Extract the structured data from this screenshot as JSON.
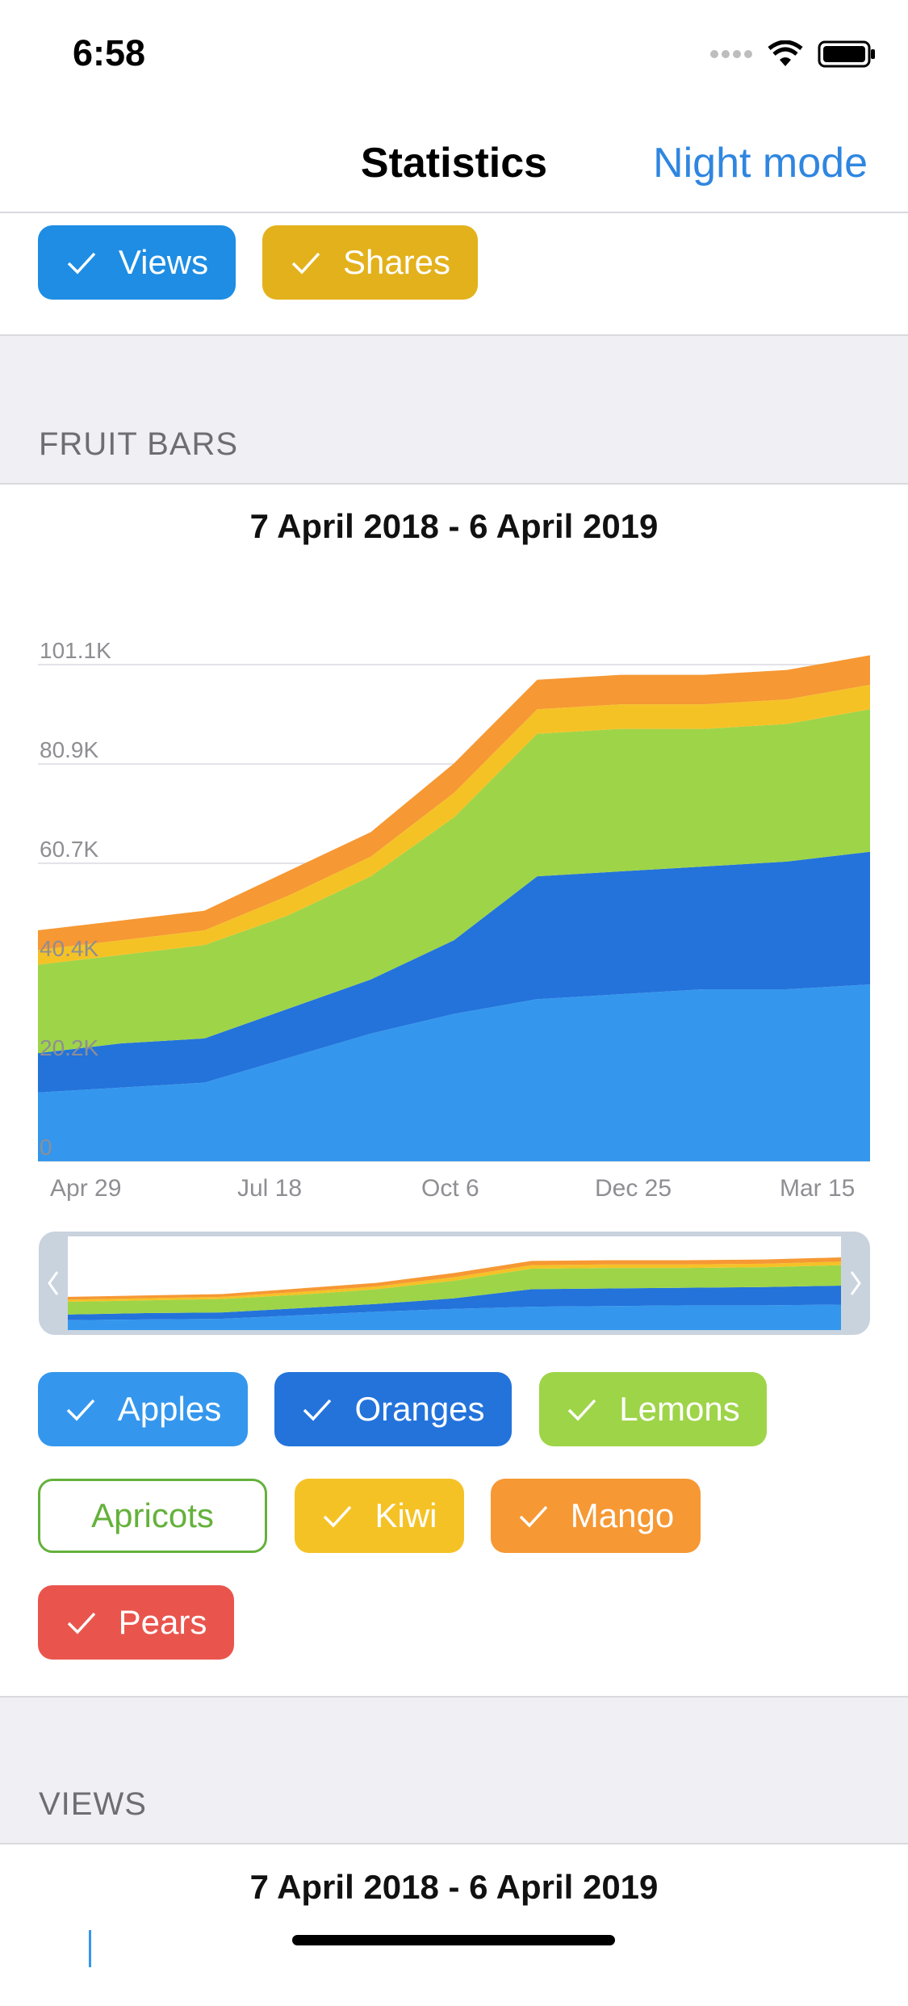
{
  "status": {
    "time": "6:58"
  },
  "nav": {
    "title": "Statistics",
    "right_button": "Night mode"
  },
  "top_toggles": [
    {
      "label": "Views",
      "color": "#1e8de3"
    },
    {
      "label": "Shares",
      "color": "#e3b11b"
    }
  ],
  "fruit_section": {
    "label": "FRUIT BARS",
    "date_range": "7 April 2018 - 6 April 2019",
    "y_ticks": [
      "0",
      "20.2K",
      "40.4K",
      "60.7K",
      "80.9K",
      "101.1K"
    ],
    "x_ticks": [
      "Apr 29",
      "Jul 18",
      "Oct 6",
      "Dec 25",
      "Mar 15"
    ],
    "toggles": [
      {
        "label": "Apples",
        "color": "#3497ed",
        "checked": true
      },
      {
        "label": "Oranges",
        "color": "#2373db",
        "checked": true
      },
      {
        "label": "Lemons",
        "color": "#9ed448",
        "checked": true
      },
      {
        "label": "Apricots",
        "color": "#64b13b",
        "checked": false
      },
      {
        "label": "Kiwi",
        "color": "#f5c226",
        "checked": true
      },
      {
        "label": "Mango",
        "color": "#f69833",
        "checked": true
      },
      {
        "label": "Pears",
        "color": "#e9554d",
        "checked": true
      }
    ]
  },
  "views_section": {
    "label": "VIEWS",
    "date_range": "7 April 2018 - 6 April 2019"
  },
  "chart_data": {
    "type": "area",
    "stacked": true,
    "x": [
      "Apr 7",
      "Apr 29",
      "Jun 1",
      "Jul 18",
      "Aug 20",
      "Oct 6",
      "Oct 25",
      "Dec 25",
      "Feb 10",
      "Mar 15",
      "Apr 6"
    ],
    "series": [
      {
        "name": "Apples",
        "color": "#3497ed",
        "values": [
          14000,
          15000,
          16000,
          21000,
          26000,
          30000,
          33000,
          34000,
          35000,
          35000,
          36000
        ]
      },
      {
        "name": "Oranges",
        "color": "#2373db",
        "values": [
          8000,
          9000,
          9000,
          10000,
          11000,
          15000,
          25000,
          25000,
          25000,
          26000,
          27000
        ]
      },
      {
        "name": "Lemons",
        "color": "#9ed448",
        "values": [
          18000,
          18000,
          19000,
          19000,
          21000,
          25000,
          29000,
          29000,
          28000,
          28000,
          29000
        ]
      },
      {
        "name": "Kiwi",
        "color": "#f5c226",
        "values": [
          3000,
          3000,
          3000,
          4000,
          4000,
          5000,
          5000,
          5000,
          5000,
          5000,
          5000
        ]
      },
      {
        "name": "Mango",
        "color": "#f69833",
        "values": [
          4000,
          4000,
          4000,
          5000,
          5000,
          6000,
          6000,
          6000,
          6000,
          6000,
          6000
        ]
      }
    ],
    "ylim": [
      0,
      121300
    ],
    "grid": true
  }
}
